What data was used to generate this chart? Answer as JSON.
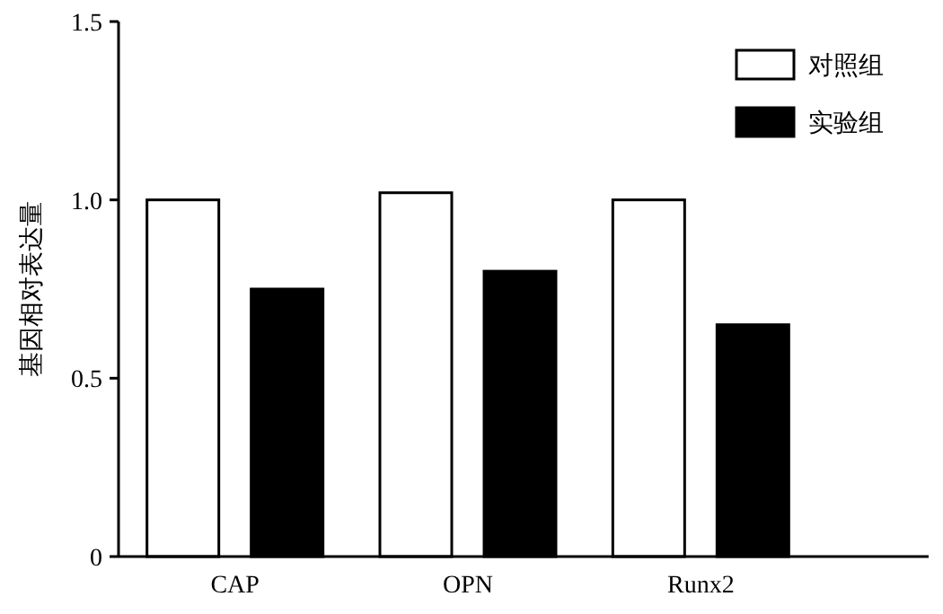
{
  "chart_data": {
    "type": "bar",
    "ylabel": "基因相对表达量",
    "categories": [
      "CAP",
      "OPN",
      "Runx2"
    ],
    "series": [
      {
        "name": "对照组",
        "color": "#ffffff",
        "values": [
          1.0,
          1.02,
          1.0
        ]
      },
      {
        "name": "实验组",
        "color": "#000000",
        "values": [
          0.75,
          0.8,
          0.65
        ]
      }
    ],
    "ylim": [
      0,
      1.5
    ],
    "yticks": [
      0,
      {
        "value": 0.5,
        "label": "0.5"
      },
      {
        "value": 1,
        "label": "1.0"
      },
      {
        "value": 1.5,
        "label": "1.5"
      }
    ],
    "grid": false,
    "legend": "top right"
  }
}
